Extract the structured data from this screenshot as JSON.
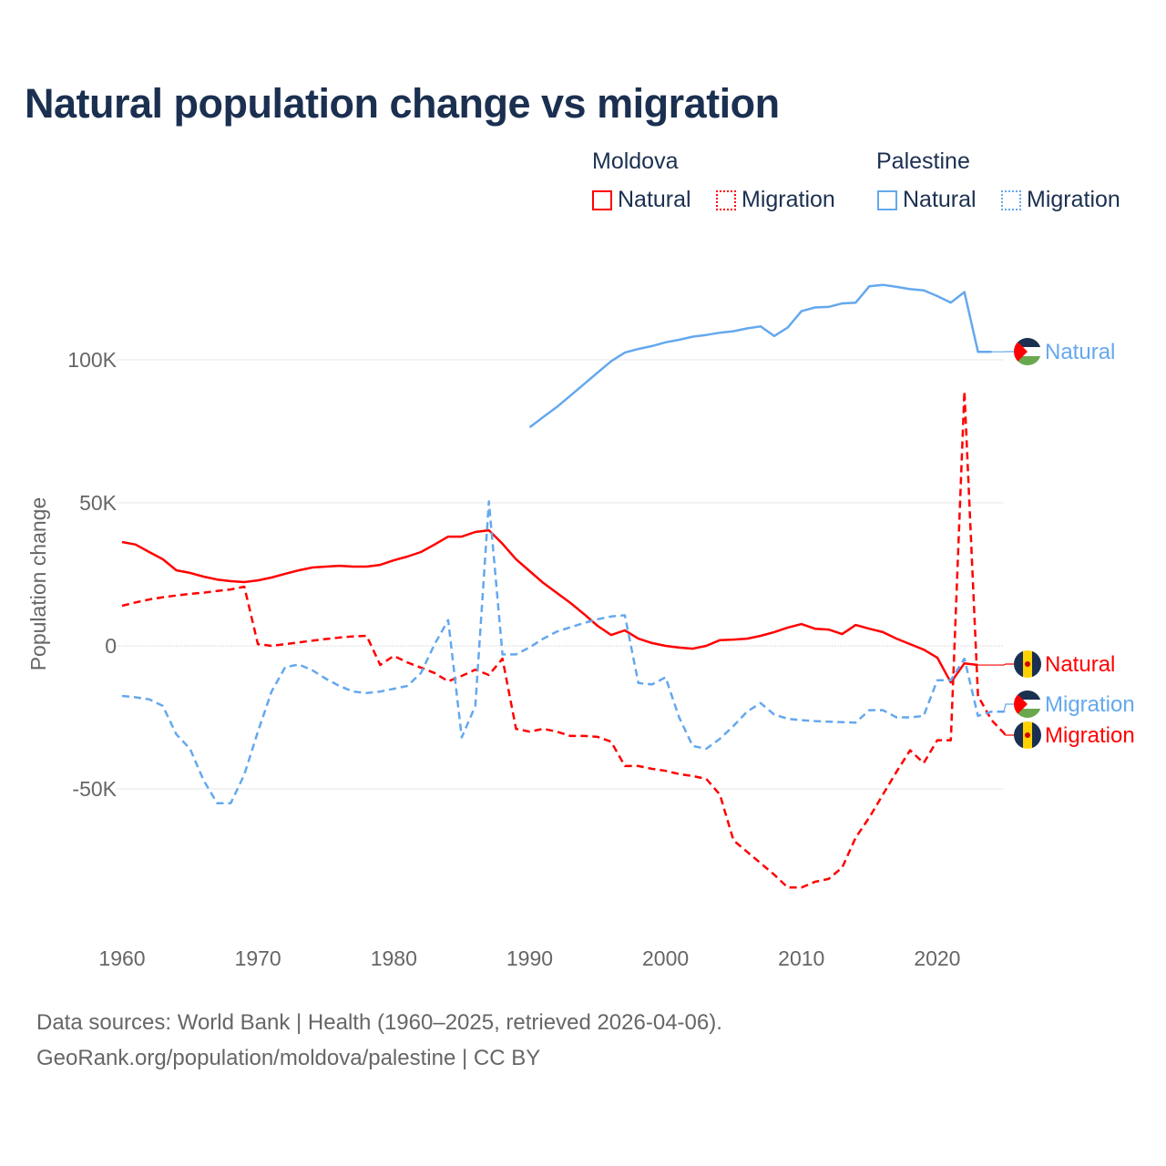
{
  "title": "Natural population change vs migration",
  "legend": {
    "groups": [
      {
        "name": "Moldova",
        "color": "#ff0000",
        "items": [
          "Natural",
          "Migration"
        ]
      },
      {
        "name": "Palestine",
        "color": "#64a8ee",
        "items": [
          "Natural",
          "Migration"
        ]
      }
    ]
  },
  "footer": {
    "line1": "Data sources: World Bank | Health (1960–2025, retrieved 2026-04-06).",
    "line2": "GeoRank.org/population/moldova/palestine | CC BY"
  },
  "chart_data": {
    "type": "line",
    "title": "Natural population change vs migration",
    "xlabel": "",
    "ylabel": "Population change",
    "xlim": [
      1960,
      2025
    ],
    "ylim": [
      -100000,
      130000
    ],
    "x_ticks": [
      1960,
      1970,
      1980,
      1990,
      2000,
      2010,
      2020
    ],
    "x_tick_labels": [
      "1960",
      "1970",
      "1980",
      "1990",
      "2000",
      "2010",
      "2020"
    ],
    "y_ticks": [
      -50000,
      0,
      50000,
      100000
    ],
    "y_tick_labels": [
      "-50K",
      "0",
      "50K",
      "100K"
    ],
    "grid": true,
    "legend_position": "top-right",
    "series": [
      {
        "name": "Moldova Natural",
        "country": "Moldova",
        "kind": "Natural",
        "label": "Natural",
        "color": "#ff0000",
        "dash": false,
        "start": 1960,
        "values": [
          36300,
          35400,
          32800,
          30300,
          26400,
          25500,
          24200,
          23200,
          22600,
          22300,
          22900,
          23900,
          25200,
          26400,
          27400,
          27700,
          28000,
          27700,
          27700,
          28300,
          29900,
          31200,
          32800,
          35400,
          38200,
          38200,
          39800,
          40400,
          35700,
          30300,
          26100,
          22000,
          18500,
          15000,
          11100,
          7000,
          3800,
          5400,
          2500,
          1000,
          0,
          -600,
          -1000,
          0,
          2000,
          2200,
          2500,
          3500,
          4800,
          6400,
          7600,
          6000,
          5700,
          4100,
          7300,
          6000,
          4800,
          2500,
          600,
          -1300,
          -4100,
          -12800,
          -6100,
          -6700
        ]
      },
      {
        "name": "Moldova Migration",
        "country": "Moldova",
        "kind": "Migration",
        "label": "Migration",
        "color": "#ff0000",
        "dash": true,
        "start": 1960,
        "values": [
          14000,
          15200,
          16200,
          17000,
          17600,
          18200,
          18600,
          19200,
          19700,
          20700,
          600,
          0,
          600,
          1200,
          1800,
          2400,
          2900,
          3300,
          3500,
          -6700,
          -3500,
          -5800,
          -7600,
          -9500,
          -12400,
          -10500,
          -8300,
          -10200,
          -4500,
          -29000,
          -30000,
          -29000,
          -30000,
          -31500,
          -31500,
          -31800,
          -33500,
          -42000,
          -42000,
          -43000,
          -43700,
          -44800,
          -45500,
          -46500,
          -52000,
          -68000,
          -72000,
          -76000,
          -80000,
          -84500,
          -84500,
          -82500,
          -81500,
          -77500,
          -67000,
          -60000,
          -52000,
          -44000,
          -36500,
          -41000,
          -33000,
          -33000,
          89000,
          -17500,
          -26000,
          -31000
        ]
      },
      {
        "name": "Palestine Natural",
        "country": "Palestine",
        "kind": "Natural",
        "label": "Natural",
        "color": "#64a8ee",
        "dash": false,
        "start": 1990,
        "values": [
          76400,
          80000,
          83500,
          87500,
          91500,
          95500,
          99500,
          102500,
          103800,
          104800,
          106100,
          107000,
          108100,
          108700,
          109500,
          110000,
          111000,
          111700,
          108300,
          111300,
          117000,
          118300,
          118500,
          119700,
          120000,
          125700,
          126200,
          125500,
          124700,
          124300,
          122300,
          120000,
          123700,
          102800,
          102800
        ]
      },
      {
        "name": "Palestine Migration",
        "country": "Palestine",
        "kind": "Migration",
        "label": "Migration",
        "color": "#64a8ee",
        "dash": true,
        "start": 1960,
        "values": [
          -17500,
          -18000,
          -18700,
          -21000,
          -31000,
          -36000,
          -47000,
          -55000,
          -55000,
          -45000,
          -30000,
          -16000,
          -7500,
          -6500,
          -8500,
          -11500,
          -14000,
          -16000,
          -16500,
          -16000,
          -15000,
          -14000,
          -9500,
          500,
          9000,
          -32000,
          -21000,
          50500,
          -3000,
          -3000,
          -500,
          2500,
          5000,
          6500,
          8000,
          9300,
          10300,
          10700,
          -13000,
          -13500,
          -11000,
          -25000,
          -35000,
          -36000,
          -32500,
          -28000,
          -23000,
          -20000,
          -24000,
          -25500,
          -26000,
          -26300,
          -26500,
          -26700,
          -26800,
          -22500,
          -22500,
          -25000,
          -25000,
          -24500,
          -12000,
          -12000,
          -4500,
          -24500,
          -23000,
          -23000
        ]
      }
    ]
  }
}
